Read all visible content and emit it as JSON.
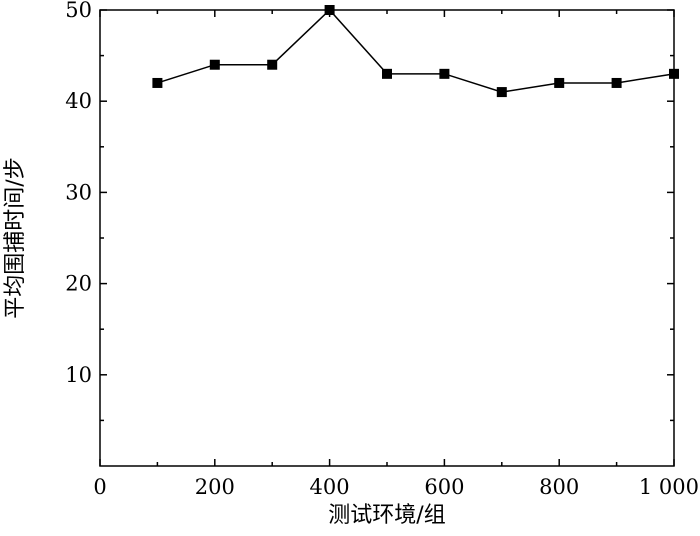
{
  "chart_data": {
    "type": "line",
    "title": "",
    "xlabel": "测试环境/组",
    "ylabel": "平均围捕时间/步",
    "xlim": [
      0,
      1000
    ],
    "ylim": [
      0,
      50
    ],
    "x_ticks": [
      0,
      200,
      400,
      600,
      800,
      1000
    ],
    "x_tick_labels": [
      "0",
      "200",
      "400",
      "600",
      "800",
      "1 000"
    ],
    "y_ticks": [
      10,
      20,
      30,
      40,
      50
    ],
    "y_tick_labels": [
      "10",
      "20",
      "30",
      "40",
      "50"
    ],
    "grid": false,
    "marker": "square",
    "series": [
      {
        "x": [
          100,
          200,
          300,
          400,
          500,
          600,
          700,
          800,
          900,
          1000
        ],
        "values": [
          42,
          44,
          44,
          50,
          43,
          43,
          41,
          42,
          42,
          43
        ]
      }
    ]
  }
}
